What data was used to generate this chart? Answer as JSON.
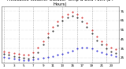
{
  "bg_color": "#ffffff",
  "grid_color": "#888888",
  "hours": [
    1,
    2,
    3,
    4,
    5,
    6,
    7,
    8,
    9,
    10,
    11,
    12,
    13,
    14,
    15,
    16,
    17,
    18,
    19,
    20,
    21,
    22,
    23,
    24
  ],
  "temp": [
    32,
    31,
    30,
    29,
    28,
    28,
    31,
    36,
    43,
    51,
    58,
    64,
    69,
    72,
    74,
    72,
    68,
    62,
    55,
    48,
    43,
    39,
    36,
    34
  ],
  "dew": [
    26,
    25,
    24,
    23,
    22,
    22,
    23,
    24,
    25,
    26,
    27,
    28,
    29,
    31,
    33,
    35,
    36,
    36,
    35,
    33,
    31,
    29,
    28,
    27
  ],
  "feels_like": [
    29,
    28,
    27,
    26,
    25,
    24,
    26,
    31,
    39,
    47,
    54,
    60,
    65,
    68,
    70,
    68,
    64,
    58,
    51,
    44,
    39,
    35,
    32,
    30
  ],
  "temp_color": "#cc0000",
  "dew_color": "#0000cc",
  "feels_color": "#000000",
  "ylim": [
    20,
    80
  ],
  "ytick_vals": [
    25,
    35,
    45,
    55,
    65,
    75
  ],
  "ytick_labels": [
    "25",
    "35",
    "45",
    "55",
    "65",
    "75"
  ],
  "xtick_vals": [
    1,
    3,
    5,
    7,
    9,
    11,
    13,
    15,
    17,
    19,
    21,
    23
  ],
  "xtick_labels": [
    "1",
    "3",
    "5",
    "7",
    "9",
    "11",
    "13",
    "15",
    "17",
    "19",
    "21",
    "23"
  ],
  "title_fontsize": 3.8,
  "marker_size": 0.8,
  "tick_label_size": 3.0,
  "dashed_grid_x": [
    1,
    4,
    7,
    10,
    13,
    16,
    19,
    22
  ],
  "dotted_grid_y": [
    25,
    35,
    45,
    55,
    65,
    75
  ]
}
